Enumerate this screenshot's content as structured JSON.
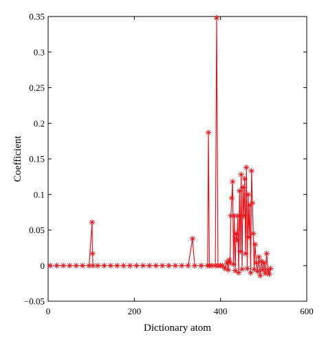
{
  "chart_data": {
    "type": "line",
    "xlabel": "Dictionary atom",
    "ylabel": "Coefficient",
    "xlim": [
      0,
      600
    ],
    "ylim": [
      -0.05,
      0.35
    ],
    "x_ticks": [
      0,
      200,
      400,
      600
    ],
    "x_tick_labels": [
      "0",
      "200",
      "400",
      "600"
    ],
    "y_ticks": [
      -0.05,
      0,
      0.05,
      0.1,
      0.15,
      0.2,
      0.25,
      0.3,
      0.35
    ],
    "y_tick_labels": [
      "−0.05",
      "0",
      "0.05",
      "0.1",
      "0.15",
      "0.2",
      "0.25",
      "0.3",
      "0.35"
    ],
    "grid": false,
    "legend": "none",
    "series": [
      {
        "color": "#e8141c",
        "marker": "asterisk",
        "x": [
          5,
          20,
          35,
          50,
          65,
          80,
          95,
          102,
          103,
          104,
          115,
          130,
          145,
          160,
          175,
          190,
          205,
          220,
          235,
          250,
          265,
          280,
          295,
          310,
          325,
          335,
          340,
          355,
          370,
          372,
          374,
          380,
          388,
          391,
          394,
          400,
          405,
          410,
          415,
          418,
          420,
          422,
          424,
          426,
          428,
          430,
          432,
          434,
          436,
          438,
          440,
          442,
          444,
          446,
          448,
          450,
          452,
          454,
          456,
          458,
          460,
          462,
          464,
          466,
          468,
          470,
          472,
          474,
          476,
          478,
          480,
          483,
          486,
          489,
          492,
          495,
          498,
          501,
          504,
          507,
          510,
          513,
          516
        ],
        "y": [
          0,
          0,
          0,
          0,
          0,
          0,
          0,
          0.061,
          0.017,
          0,
          0,
          0,
          0,
          0,
          0,
          0,
          0,
          0,
          0,
          0,
          0,
          0,
          0,
          0,
          0,
          0.038,
          0,
          0,
          0,
          0.187,
          0,
          0,
          0,
          0.348,
          0,
          0,
          0,
          -0.004,
          0.005,
          -0.006,
          0.008,
          0.004,
          0.07,
          0.095,
          0.118,
          0.002,
          0.07,
          -0.007,
          0.045,
          0.036,
          0.07,
          -0.01,
          0.105,
          0.02,
          0.128,
          -0.005,
          0.11,
          0.07,
          0.122,
          0.017,
          0.138,
          -0.004,
          0.1,
          0.04,
          0.085,
          -0.01,
          0.133,
          0.088,
          0.045,
          -0.005,
          0.03,
          0.004,
          -0.008,
          0.012,
          -0.014,
          0.006,
          -0.006,
          0.004,
          -0.011,
          0.017,
          -0.006,
          -0.012,
          -0.004
        ]
      }
    ]
  }
}
